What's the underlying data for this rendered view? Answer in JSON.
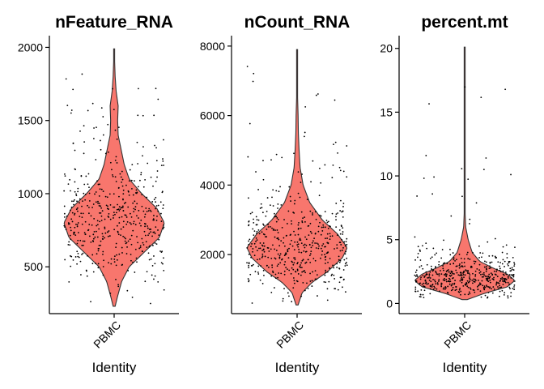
{
  "colors": {
    "violin_fill": "#F8766D",
    "violin_stroke": "#333333",
    "point": "#000000",
    "axis": "#000000"
  },
  "chart_data": [
    {
      "type": "violin",
      "title": "nFeature_RNA",
      "xlabel": "Identity",
      "ylabel": "",
      "category": "PBMC",
      "ylim": [
        180,
        2080
      ],
      "yticks": [
        500,
        1000,
        1500,
        2000
      ],
      "ytick_labels": [
        "500",
        "1000",
        "1500",
        "2000"
      ],
      "range": [
        230,
        1990
      ],
      "density_profile": [
        [
          230,
          0.02
        ],
        [
          300,
          0.07
        ],
        [
          400,
          0.15
        ],
        [
          500,
          0.3
        ],
        [
          600,
          0.6
        ],
        [
          700,
          0.9
        ],
        [
          800,
          1.0
        ],
        [
          900,
          0.85
        ],
        [
          1000,
          0.55
        ],
        [
          1100,
          0.3
        ],
        [
          1200,
          0.2
        ],
        [
          1300,
          0.14
        ],
        [
          1400,
          0.08
        ],
        [
          1500,
          0.07
        ],
        [
          1600,
          0.08
        ],
        [
          1700,
          0.04
        ],
        [
          1800,
          0.02
        ],
        [
          1900,
          0.01
        ],
        [
          1990,
          0.005
        ]
      ],
      "n_points": 500,
      "seed": 11
    },
    {
      "type": "violin",
      "title": "nCount_RNA",
      "xlabel": "Identity",
      "ylabel": "",
      "category": "PBMC",
      "ylim": [
        300,
        8300
      ],
      "yticks": [
        2000,
        4000,
        6000,
        8000
      ],
      "ytick_labels": [
        "2000",
        "4000",
        "6000",
        "8000"
      ],
      "range": [
        550,
        7900
      ],
      "density_profile": [
        [
          550,
          0.02
        ],
        [
          900,
          0.1
        ],
        [
          1200,
          0.3
        ],
        [
          1500,
          0.6
        ],
        [
          1900,
          0.9
        ],
        [
          2200,
          1.0
        ],
        [
          2600,
          0.8
        ],
        [
          3000,
          0.5
        ],
        [
          3500,
          0.25
        ],
        [
          4000,
          0.12
        ],
        [
          4500,
          0.06
        ],
        [
          5000,
          0.04
        ],
        [
          5500,
          0.025
        ],
        [
          6000,
          0.02
        ],
        [
          6500,
          0.01
        ],
        [
          7000,
          0.006
        ],
        [
          7900,
          0.004
        ]
      ],
      "n_points": 500,
      "seed": 23
    },
    {
      "type": "violin",
      "title": "percent.mt",
      "xlabel": "Identity",
      "ylabel": "",
      "category": "PBMC",
      "ylim": [
        -0.8,
        21
      ],
      "yticks": [
        0,
        5,
        10,
        15,
        20
      ],
      "ytick_labels": [
        "0",
        "5",
        "10",
        "15",
        "20"
      ],
      "range": [
        0.3,
        20.1
      ],
      "density_profile": [
        [
          0.3,
          0.05
        ],
        [
          0.8,
          0.4
        ],
        [
          1.3,
          0.85
        ],
        [
          1.8,
          1.0
        ],
        [
          2.3,
          0.85
        ],
        [
          2.8,
          0.55
        ],
        [
          3.3,
          0.3
        ],
        [
          4.0,
          0.15
        ],
        [
          5.0,
          0.07
        ],
        [
          6.0,
          0.02
        ],
        [
          7.0,
          0.01
        ],
        [
          8.0,
          0.007
        ],
        [
          10.5,
          0.01
        ],
        [
          12.0,
          0.004
        ],
        [
          15.0,
          0.003
        ],
        [
          20.1,
          0.003
        ]
      ],
      "n_points": 500,
      "seed": 37
    }
  ]
}
